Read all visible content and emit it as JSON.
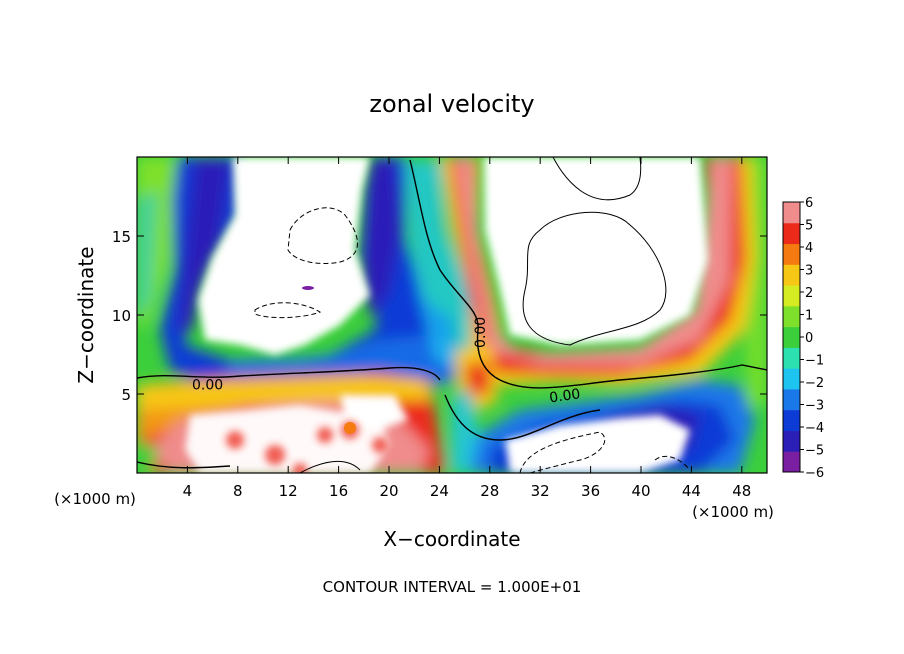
{
  "chart_data": {
    "type": "heatmap",
    "title": "zonal velocity",
    "xlabel": "X−coordinate",
    "ylabel": "Z−coordinate",
    "x_unit_left": "(×1000 m)",
    "x_unit_right": "(×1000 m)",
    "footer": "CONTOUR INTERVAL = 1.000E+01",
    "xlim": [
      0,
      50
    ],
    "ylim": [
      0,
      20
    ],
    "xticks": [
      4,
      8,
      12,
      16,
      20,
      24,
      28,
      32,
      36,
      40,
      44,
      48
    ],
    "yticks": [
      5,
      10,
      15
    ],
    "colorbar": {
      "min": -6,
      "max": 6,
      "ticks": [
        6,
        5,
        4,
        3,
        2,
        1,
        0,
        -1,
        -2,
        -3,
        -4,
        -5,
        -6
      ],
      "colors": [
        "#7a1fa2",
        "#2b1fb8",
        "#0d3bd6",
        "#1a78e8",
        "#1ec4f0",
        "#2de0b0",
        "#3ccf3c",
        "#7ee02a",
        "#d6ec22",
        "#f7c715",
        "#f57a10",
        "#ec2a1a",
        "#f08c8c"
      ]
    },
    "contour_labels": [
      {
        "text": "0.00",
        "x": 5.6,
        "y": 5.3,
        "rotate": 0
      },
      {
        "text": "0.00",
        "x": 27.6,
        "y": 8.9,
        "rotate": -90
      },
      {
        "text": "0.00",
        "x": 34.0,
        "y": 4.6,
        "rotate": -8
      }
    ],
    "colorbar_label_format": "integer"
  }
}
